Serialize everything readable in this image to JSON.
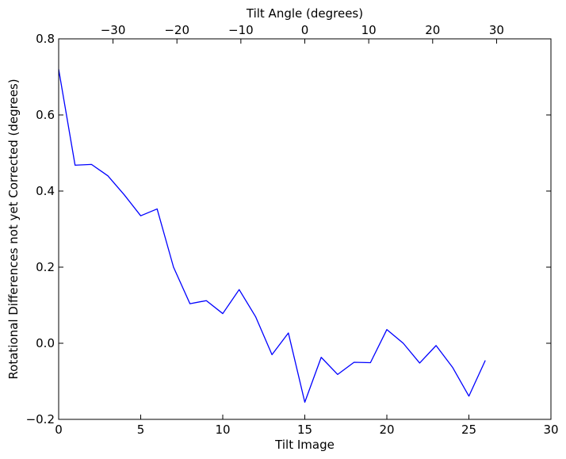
{
  "chart_data": {
    "type": "line",
    "title": "",
    "xlabel": "Tilt Image",
    "ylabel": "Rotational Differences not yet Corrected (degrees)",
    "top_xlabel": "Tilt Angle (degrees)",
    "xlim": [
      0,
      30
    ],
    "ylim": [
      -0.2,
      0.8
    ],
    "top_xlim": [
      -38.5,
      38.5
    ],
    "x_ticks": [
      0,
      5,
      10,
      15,
      20,
      25,
      30
    ],
    "x_tick_labels": [
      "0",
      "5",
      "10",
      "15",
      "20",
      "25",
      "30"
    ],
    "y_ticks": [
      -0.2,
      0.0,
      0.2,
      0.4,
      0.6,
      0.8
    ],
    "y_tick_labels": [
      "−0.2",
      "0.0",
      "0.2",
      "0.4",
      "0.6",
      "0.8"
    ],
    "top_x_ticks": [
      -30,
      -20,
      -10,
      0,
      10,
      20,
      30
    ],
    "top_x_tick_labels": [
      "−30",
      "−20",
      "−10",
      "0",
      "10",
      "20",
      "30"
    ],
    "grid": false,
    "legend": "none",
    "line_color": "#0000ff",
    "x": [
      0,
      1,
      2,
      3,
      4,
      5,
      6,
      7,
      8,
      9,
      10,
      11,
      12,
      13,
      14,
      15,
      16,
      17,
      18,
      19,
      20,
      21,
      22,
      23,
      24,
      25,
      26
    ],
    "y": [
      0.72,
      0.468,
      0.47,
      0.44,
      0.39,
      0.335,
      0.353,
      0.2,
      0.104,
      0.112,
      0.078,
      0.141,
      0.07,
      -0.03,
      0.027,
      -0.155,
      -0.037,
      -0.082,
      -0.05,
      -0.051,
      0.036,
      0.0,
      -0.052,
      -0.006,
      -0.063,
      -0.139,
      -0.045
    ]
  }
}
